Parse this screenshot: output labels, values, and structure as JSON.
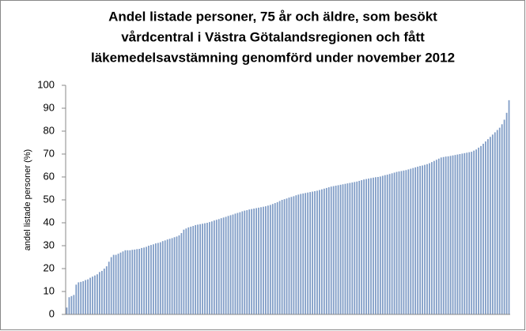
{
  "chart_data": {
    "type": "bar",
    "title": [
      "Andel listade personer, 75 år och äldre, som besökt",
      "vårdcentral i Västra Götalandsregionen och fått",
      "läkemedelsavstämning genomförd under november 2012"
    ],
    "y_label": "andel listade personer (%)",
    "color": "#7f9cc6",
    "ylim": [
      0,
      100
    ],
    "yticks": [
      0,
      10,
      20,
      30,
      40,
      50,
      60,
      70,
      80,
      90,
      100
    ],
    "grid": false,
    "categories": [
      null,
      null,
      null,
      null,
      null,
      null,
      null,
      null,
      null,
      null,
      null,
      null,
      null,
      null,
      null,
      null,
      null,
      null,
      null,
      null,
      null,
      null,
      null,
      null,
      null,
      null,
      null,
      null,
      null,
      null,
      null,
      null,
      null,
      null,
      null,
      null,
      null,
      null,
      null,
      null,
      null,
      null,
      null,
      null,
      null,
      null,
      null,
      null,
      null,
      null,
      null,
      null,
      null,
      null,
      null,
      null,
      null,
      null,
      null,
      null,
      null,
      null,
      null,
      null,
      null,
      null,
      null,
      null,
      null,
      null,
      null,
      null,
      null,
      null,
      null,
      null,
      null,
      null,
      null,
      null,
      null,
      null,
      null,
      null,
      null,
      null,
      null,
      null,
      null,
      null,
      null,
      null,
      null,
      null,
      null,
      null,
      null,
      null,
      null,
      null,
      null,
      null,
      null,
      null,
      null,
      null,
      null,
      null,
      null,
      null,
      null,
      null,
      null,
      null,
      null,
      null,
      null,
      null,
      null,
      null,
      null,
      null,
      null,
      null,
      null,
      null,
      null,
      null,
      null,
      null,
      null,
      null,
      null,
      null,
      null,
      null,
      null,
      null,
      null,
      null,
      null,
      null,
      null,
      null,
      null,
      null,
      null,
      null,
      null,
      null,
      null,
      null,
      null,
      null,
      null,
      null,
      null,
      null,
      null,
      null,
      null,
      null,
      null,
      null,
      null,
      null,
      null,
      null,
      null,
      null,
      null,
      null,
      null,
      null,
      null,
      null,
      null,
      null,
      null,
      null,
      null,
      null,
      null,
      null,
      null,
      null,
      null,
      null,
      null,
      null
    ],
    "values": [
      3,
      7.5,
      8,
      8.5,
      13,
      14,
      14.2,
      14.5,
      15,
      15.3,
      16,
      16.5,
      17,
      17.5,
      18.5,
      19,
      20,
      21,
      23,
      25,
      26,
      26,
      26.5,
      27,
      27.5,
      28,
      28,
      28,
      28.2,
      28.3,
      28.5,
      28.6,
      29,
      29.2,
      29.5,
      30,
      30.3,
      30.6,
      31,
      31.2,
      31.5,
      32,
      32.3,
      32.7,
      33,
      33.3,
      33.7,
      34,
      34.5,
      35.5,
      37,
      37.5,
      38,
      38.3,
      38.6,
      39,
      39.2,
      39.4,
      39.6,
      39.8,
      40,
      40.3,
      40.6,
      41,
      41.3,
      41.6,
      42,
      42.3,
      42.6,
      43,
      43.3,
      43.6,
      44,
      44.3,
      44.6,
      45,
      45.3,
      45.5,
      45.8,
      46,
      46.2,
      46.4,
      46.6,
      46.8,
      47,
      47.2,
      47.5,
      47.8,
      48.2,
      48.6,
      49,
      49.5,
      50,
      50.3,
      50.6,
      51,
      51.3,
      51.6,
      52,
      52.3,
      52.6,
      52.8,
      53,
      53.2,
      53.4,
      53.6,
      53.8,
      54,
      54.3,
      54.6,
      54.9,
      55.2,
      55.5,
      55.8,
      56,
      56.2,
      56.4,
      56.6,
      56.8,
      57,
      57.2,
      57.4,
      57.6,
      57.8,
      58,
      58.3,
      58.6,
      58.9,
      59.1,
      59.3,
      59.5,
      59.7,
      59.9,
      60,
      60.2,
      60.5,
      60.8,
      61,
      61.3,
      61.6,
      61.9,
      62.2,
      62.4,
      62.6,
      62.8,
      63,
      63.3,
      63.6,
      63.9,
      64.2,
      64.5,
      64.8,
      65,
      65.3,
      65.6,
      66,
      66.5,
      67,
      67.5,
      68,
      68.5,
      68.7,
      68.9,
      69,
      69.2,
      69.4,
      69.6,
      69.8,
      70,
      70.2,
      70.4,
      70.6,
      70.8,
      71,
      71.5,
      72,
      72.8,
      73.5,
      74.5,
      75.5,
      76.5,
      77.5,
      78.5,
      79.5,
      80.5,
      81.5,
      83,
      85,
      88,
      93.5
    ]
  }
}
